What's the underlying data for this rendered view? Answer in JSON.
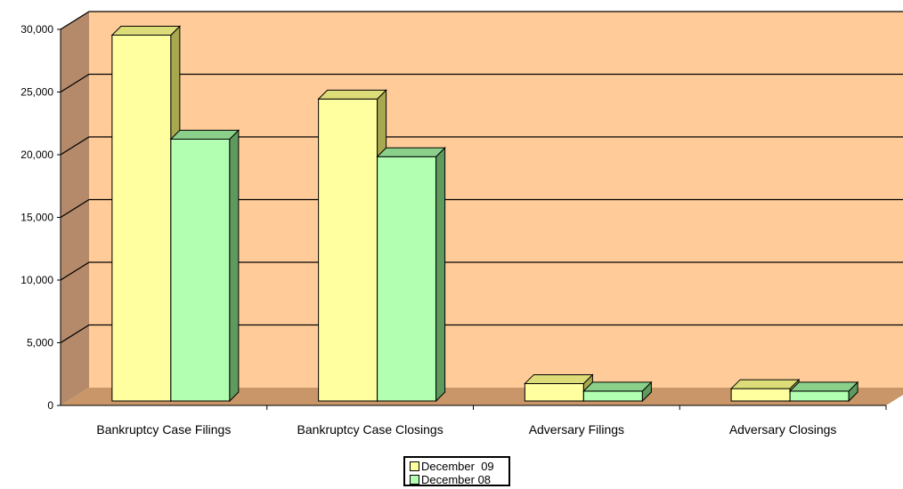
{
  "chart_data": {
    "type": "bar",
    "categories": [
      "Bankruptcy Case Filings",
      "Bankruptcy Case Closings",
      "Adversary Filings",
      "Adversary Closings"
    ],
    "series": [
      {
        "name": "December  09",
        "values": [
          29400,
          24300,
          1600,
          1200
        ],
        "color": "#ffffa0",
        "color_top": "#dcdc78",
        "color_side": "#a8a850"
      },
      {
        "name": "December 08",
        "values": [
          21100,
          19700,
          1000,
          1000
        ],
        "color": "#b2ffb2",
        "color_top": "#8ad08a",
        "color_side": "#5e9a5e"
      }
    ],
    "y_ticks": [
      "0",
      "5,000",
      "10,000",
      "15,000",
      "20,000",
      "25,000",
      "30,000"
    ],
    "ylim": [
      0,
      30000
    ],
    "grid": true,
    "legend_position": "bottom-center",
    "wall_color": "#ffcc99",
    "side_wall_color": "#b58a6a",
    "floor_color": "#c89668"
  }
}
